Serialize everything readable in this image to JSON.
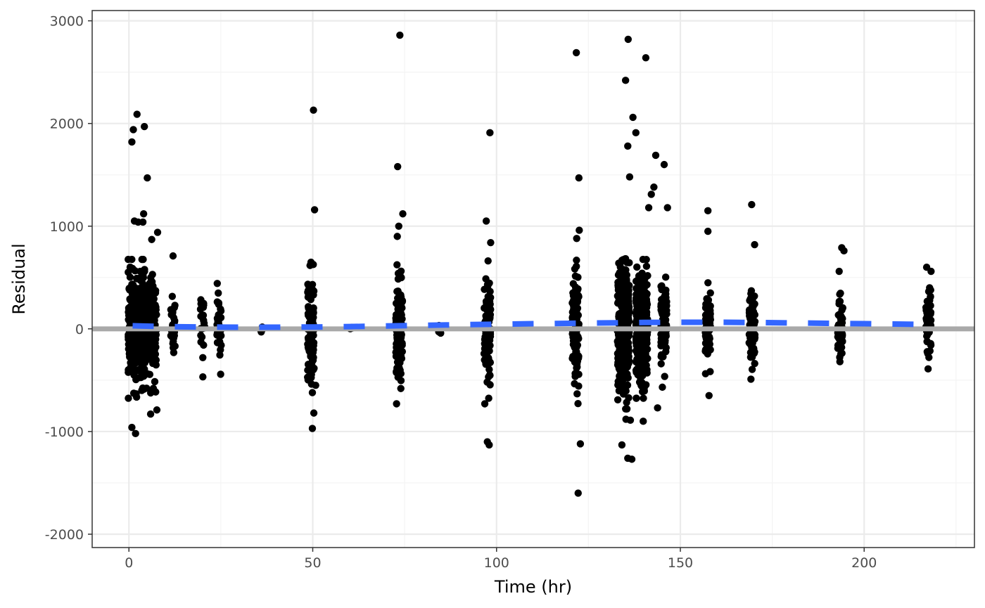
{
  "chart_data": {
    "type": "scatter",
    "title": "",
    "xlabel": "Time (hr)",
    "ylabel": "Residual",
    "xlim": [
      -10,
      230
    ],
    "ylim": [
      -2130,
      3100
    ],
    "x_ticks": [
      0,
      50,
      100,
      150,
      200
    ],
    "x_minor": [
      25,
      75,
      125,
      175,
      225
    ],
    "y_ticks": [
      -2000,
      -1000,
      0,
      1000,
      2000,
      3000
    ],
    "y_minor": [
      -1500,
      -500,
      500,
      1500,
      2500
    ],
    "x_tick_labels": [
      "0",
      "50",
      "100",
      "150",
      "200"
    ],
    "y_tick_labels": [
      "-2000",
      "-1000",
      "0",
      "1000",
      "2000",
      "3000"
    ],
    "grid": true,
    "legend": "none",
    "colors": {
      "points": "#000000",
      "zero_line": "#a9a9a9",
      "trend": "#3366ff",
      "grid_major": "#ebebeb",
      "grid_minor": "#f4f4f4",
      "panel_border": "#333333"
    },
    "reference_line": {
      "y": 0
    },
    "trend_line": {
      "style": "dashed",
      "x": [
        1,
        10,
        20,
        30,
        40,
        50,
        60,
        70,
        80,
        90,
        100,
        110,
        120,
        130,
        140,
        150,
        160,
        170,
        180,
        190,
        200,
        210,
        218
      ],
      "y": [
        30,
        22,
        18,
        16,
        16,
        18,
        22,
        28,
        34,
        40,
        45,
        50,
        54,
        58,
        62,
        64,
        64,
        62,
        58,
        54,
        50,
        46,
        42
      ]
    },
    "clusters": [
      {
        "x": 2,
        "spread": 2.2,
        "n": 300,
        "sd": 260
      },
      {
        "x": 5.5,
        "spread": 2,
        "n": 180,
        "sd": 240
      },
      {
        "x": 12,
        "spread": 0.6,
        "n": 30,
        "sd": 150
      },
      {
        "x": 20,
        "spread": 0.6,
        "n": 20,
        "sd": 180
      },
      {
        "x": 24.5,
        "spread": 0.6,
        "n": 35,
        "sd": 170
      },
      {
        "x": 36,
        "spread": 0.3,
        "n": 6,
        "sd": 30
      },
      {
        "x": 49.5,
        "spread": 0.9,
        "n": 110,
        "sd": 260
      },
      {
        "x": 60.5,
        "spread": 0.3,
        "n": 5,
        "sd": 30
      },
      {
        "x": 73.5,
        "spread": 0.9,
        "n": 110,
        "sd": 240
      },
      {
        "x": 84.5,
        "spread": 0.3,
        "n": 6,
        "sd": 20
      },
      {
        "x": 97.5,
        "spread": 0.9,
        "n": 110,
        "sd": 260
      },
      {
        "x": 121.5,
        "spread": 0.9,
        "n": 120,
        "sd": 280
      },
      {
        "x": 134.5,
        "spread": 1.6,
        "n": 350,
        "sd": 300
      },
      {
        "x": 139.5,
        "spread": 1.6,
        "n": 300,
        "sd": 260
      },
      {
        "x": 145.5,
        "spread": 0.8,
        "n": 90,
        "sd": 230
      },
      {
        "x": 157.5,
        "spread": 0.7,
        "n": 70,
        "sd": 180
      },
      {
        "x": 169.5,
        "spread": 0.8,
        "n": 80,
        "sd": 190
      },
      {
        "x": 193.5,
        "spread": 0.7,
        "n": 60,
        "sd": 160
      },
      {
        "x": 217.5,
        "spread": 0.7,
        "n": 55,
        "sd": 150
      }
    ],
    "outliers": [
      [
        0.8,
        1820
      ],
      [
        1.2,
        1940
      ],
      [
        2.2,
        2090
      ],
      [
        4.2,
        1970
      ],
      [
        5,
        1470
      ],
      [
        4,
        1120
      ],
      [
        1.5,
        1050
      ],
      [
        2.5,
        1040
      ],
      [
        3.8,
        1040
      ],
      [
        7.8,
        940
      ],
      [
        6.2,
        870
      ],
      [
        0.8,
        -960
      ],
      [
        1.8,
        -1020
      ],
      [
        7.6,
        -790
      ],
      [
        5.9,
        -830
      ],
      [
        12,
        710
      ],
      [
        50.2,
        2130
      ],
      [
        50.5,
        1160
      ],
      [
        50.3,
        -820
      ],
      [
        49.9,
        -970
      ],
      [
        50.8,
        -550
      ],
      [
        73.7,
        2860
      ],
      [
        73.1,
        1580
      ],
      [
        74.5,
        1120
      ],
      [
        73.4,
        1000
      ],
      [
        73,
        900
      ],
      [
        72.8,
        -730
      ],
      [
        98.2,
        1910
      ],
      [
        97.2,
        1050
      ],
      [
        96.8,
        -730
      ],
      [
        97.5,
        -1100
      ],
      [
        98,
        -1130
      ],
      [
        98.4,
        840
      ],
      [
        121.7,
        2690
      ],
      [
        122.4,
        1470
      ],
      [
        122.2,
        -1600
      ],
      [
        122.8,
        -1120
      ],
      [
        121.8,
        880
      ],
      [
        122.5,
        960
      ],
      [
        135.8,
        2820
      ],
      [
        135.1,
        2420
      ],
      [
        140.6,
        2640
      ],
      [
        137.1,
        2060
      ],
      [
        137.9,
        1910
      ],
      [
        135.7,
        1780
      ],
      [
        143.3,
        1690
      ],
      [
        145.6,
        1600
      ],
      [
        136.2,
        1480
      ],
      [
        142.1,
        1310
      ],
      [
        142.8,
        1380
      ],
      [
        141.4,
        1180
      ],
      [
        146.5,
        1180
      ],
      [
        134.1,
        -1130
      ],
      [
        135.7,
        -1260
      ],
      [
        136.8,
        -1270
      ],
      [
        139.9,
        -900
      ],
      [
        135.2,
        -880
      ],
      [
        136.4,
        -890
      ],
      [
        143.8,
        -770
      ],
      [
        157.5,
        1150
      ],
      [
        157.5,
        950
      ],
      [
        157.8,
        -650
      ],
      [
        169.4,
        1210
      ],
      [
        170.2,
        820
      ],
      [
        169.2,
        -490
      ],
      [
        193.9,
        790
      ],
      [
        194.5,
        760
      ],
      [
        193.2,
        560
      ],
      [
        193.4,
        -320
      ],
      [
        217,
        600
      ],
      [
        218.2,
        560
      ],
      [
        217.8,
        400
      ],
      [
        217.3,
        -240
      ]
    ]
  }
}
